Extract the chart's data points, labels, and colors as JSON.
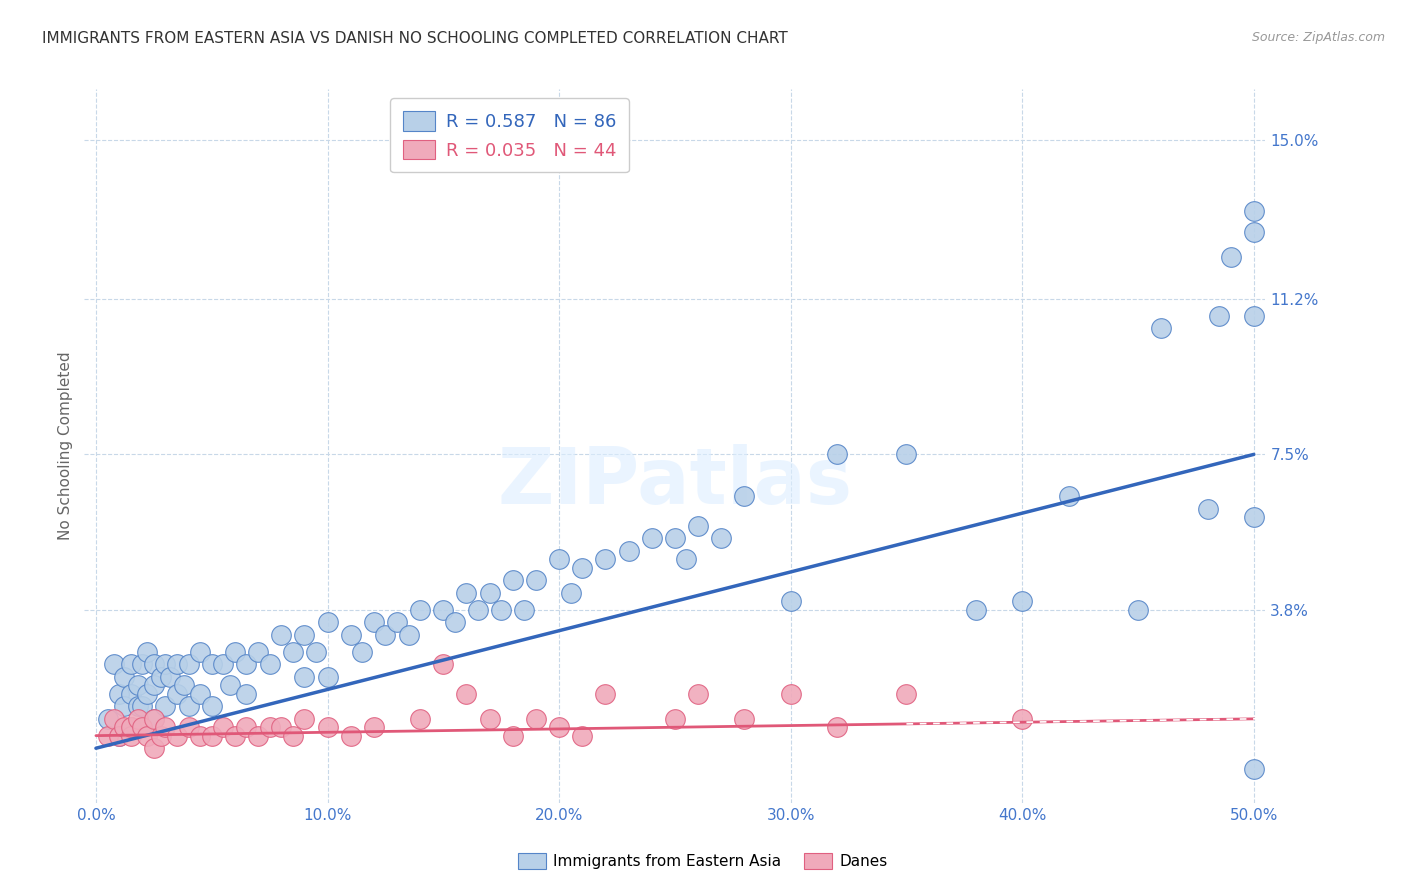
{
  "title": "IMMIGRANTS FROM EASTERN ASIA VS DANISH NO SCHOOLING COMPLETED CORRELATION CHART",
  "source": "Source: ZipAtlas.com",
  "xlabel_ticks": [
    "0.0%",
    "10.0%",
    "20.0%",
    "30.0%",
    "40.0%",
    "50.0%"
  ],
  "xlabel_vals": [
    0.0,
    0.1,
    0.2,
    0.3,
    0.4,
    0.5
  ],
  "ylabel": "No Schooling Completed",
  "ylabel_ticks_right": [
    "15.0%",
    "11.2%",
    "7.5%",
    "3.8%"
  ],
  "ylabel_vals_right": [
    0.15,
    0.112,
    0.075,
    0.038
  ],
  "xlim": [
    -0.005,
    0.505
  ],
  "ylim": [
    -0.008,
    0.162
  ],
  "legend1_R": "0.587",
  "legend1_N": "86",
  "legend2_R": "0.035",
  "legend2_N": "44",
  "blue_color": "#b8d0e8",
  "blue_edge_color": "#5585c8",
  "blue_line_color": "#3366bb",
  "pink_color": "#f0aabb",
  "pink_edge_color": "#e06080",
  "pink_line_color": "#e05878",
  "grid_color": "#c8d8e8",
  "blue_line_x0": 0.0,
  "blue_line_y0": 0.005,
  "blue_line_x1": 0.5,
  "blue_line_y1": 0.075,
  "pink_line_x0": 0.0,
  "pink_line_y0": 0.008,
  "pink_line_x1": 0.5,
  "pink_line_y1": 0.012,
  "blue_scatter_x": [
    0.005,
    0.008,
    0.01,
    0.01,
    0.012,
    0.012,
    0.015,
    0.015,
    0.015,
    0.018,
    0.018,
    0.02,
    0.02,
    0.022,
    0.022,
    0.025,
    0.025,
    0.025,
    0.028,
    0.03,
    0.03,
    0.032,
    0.035,
    0.035,
    0.038,
    0.04,
    0.04,
    0.045,
    0.045,
    0.05,
    0.05,
    0.055,
    0.058,
    0.06,
    0.065,
    0.065,
    0.07,
    0.075,
    0.08,
    0.085,
    0.09,
    0.09,
    0.095,
    0.1,
    0.1,
    0.11,
    0.115,
    0.12,
    0.125,
    0.13,
    0.135,
    0.14,
    0.15,
    0.155,
    0.16,
    0.165,
    0.17,
    0.175,
    0.18,
    0.185,
    0.19,
    0.2,
    0.205,
    0.21,
    0.22,
    0.23,
    0.24,
    0.25,
    0.255,
    0.26,
    0.27,
    0.28,
    0.3,
    0.32,
    0.35,
    0.38,
    0.4,
    0.42,
    0.45,
    0.46,
    0.48,
    0.485,
    0.49,
    0.5,
    0.5,
    0.5,
    0.5,
    0.5
  ],
  "blue_scatter_y": [
    0.012,
    0.025,
    0.018,
    0.008,
    0.022,
    0.015,
    0.025,
    0.018,
    0.01,
    0.02,
    0.015,
    0.025,
    0.015,
    0.028,
    0.018,
    0.025,
    0.02,
    0.012,
    0.022,
    0.025,
    0.015,
    0.022,
    0.025,
    0.018,
    0.02,
    0.025,
    0.015,
    0.028,
    0.018,
    0.025,
    0.015,
    0.025,
    0.02,
    0.028,
    0.025,
    0.018,
    0.028,
    0.025,
    0.032,
    0.028,
    0.032,
    0.022,
    0.028,
    0.035,
    0.022,
    0.032,
    0.028,
    0.035,
    0.032,
    0.035,
    0.032,
    0.038,
    0.038,
    0.035,
    0.042,
    0.038,
    0.042,
    0.038,
    0.045,
    0.038,
    0.045,
    0.05,
    0.042,
    0.048,
    0.05,
    0.052,
    0.055,
    0.055,
    0.05,
    0.058,
    0.055,
    0.065,
    0.04,
    0.075,
    0.075,
    0.038,
    0.04,
    0.065,
    0.038,
    0.105,
    0.062,
    0.108,
    0.122,
    0.108,
    0.128,
    0.06,
    0.0,
    0.133
  ],
  "pink_scatter_x": [
    0.005,
    0.008,
    0.01,
    0.012,
    0.015,
    0.015,
    0.018,
    0.02,
    0.022,
    0.025,
    0.025,
    0.028,
    0.03,
    0.035,
    0.04,
    0.045,
    0.05,
    0.055,
    0.06,
    0.065,
    0.07,
    0.075,
    0.08,
    0.085,
    0.09,
    0.1,
    0.11,
    0.12,
    0.14,
    0.15,
    0.16,
    0.17,
    0.18,
    0.19,
    0.2,
    0.21,
    0.22,
    0.25,
    0.26,
    0.28,
    0.3,
    0.32,
    0.35,
    0.4
  ],
  "pink_scatter_y": [
    0.008,
    0.012,
    0.008,
    0.01,
    0.008,
    0.01,
    0.012,
    0.01,
    0.008,
    0.012,
    0.005,
    0.008,
    0.01,
    0.008,
    0.01,
    0.008,
    0.008,
    0.01,
    0.008,
    0.01,
    0.008,
    0.01,
    0.01,
    0.008,
    0.012,
    0.01,
    0.008,
    0.01,
    0.012,
    0.025,
    0.018,
    0.012,
    0.008,
    0.012,
    0.01,
    0.008,
    0.018,
    0.012,
    0.018,
    0.012,
    0.018,
    0.01,
    0.018,
    0.012
  ]
}
